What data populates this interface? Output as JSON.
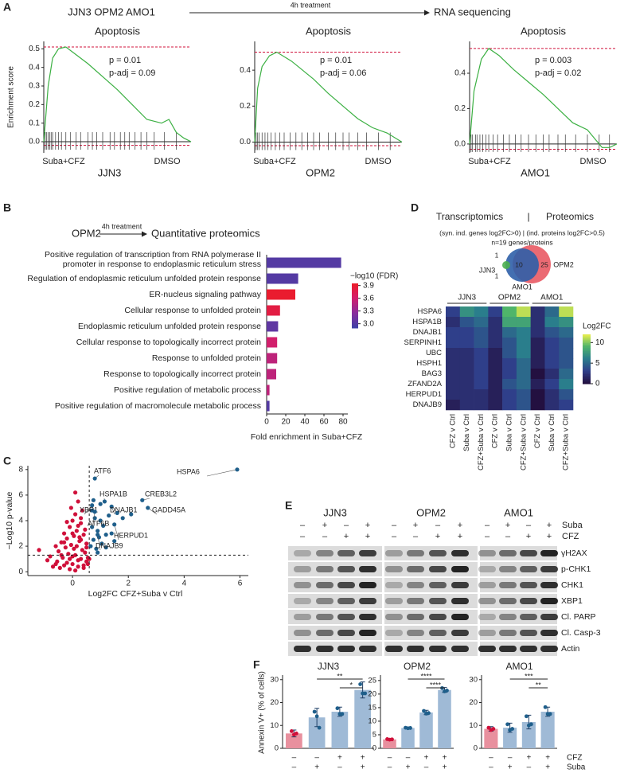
{
  "panels": [
    "A",
    "B",
    "C",
    "D",
    "E",
    "F"
  ],
  "gsea": {
    "header": {
      "cells": "JJN3 OPM2 AMO1",
      "treatment": "4h treatment",
      "assay": "RNA sequencing"
    },
    "y_label": "Enrichment score",
    "x_left": "Suba+CFZ",
    "x_right": "DMSO",
    "color": "#3cb043",
    "line_color": "#d0103a",
    "plots": [
      {
        "title": "Apoptosis",
        "cell_line": "JJN3",
        "p": "p = 0.01",
        "p_adj": "p-adj = 0.09",
        "ylim": [
          -0.06,
          0.54
        ],
        "yticks": [
          {
            "value": 0,
            "label": "0.0"
          },
          0.1,
          0.2,
          0.3,
          0.4,
          0.5
        ],
        "x": [
          0,
          0.03,
          0.06,
          0.1,
          0.15,
          0.2,
          0.3,
          0.4,
          0.5,
          0.6,
          0.7,
          0.8,
          0.85,
          0.9,
          0.95,
          1
        ],
        "es": [
          0,
          0.3,
          0.45,
          0.5,
          0.51,
          0.48,
          0.42,
          0.35,
          0.28,
          0.2,
          0.12,
          0.1,
          0.12,
          0.05,
          0.02,
          0
        ],
        "es_max": 0.51,
        "es_min": -0.02,
        "hits": [
          0.01,
          0.02,
          0.03,
          0.04,
          0.05,
          0.06,
          0.08,
          0.1,
          0.12,
          0.15,
          0.18,
          0.22,
          0.25,
          0.3,
          0.33,
          0.36,
          0.4,
          0.45,
          0.48,
          0.52,
          0.55,
          0.58,
          0.62,
          0.66,
          0.7,
          0.75,
          0.82,
          0.9
        ]
      },
      {
        "title": "Apoptosis",
        "cell_line": "OPM2",
        "p": "p = 0.01",
        "p_adj": "p-adj = 0.06",
        "ylim": [
          -0.06,
          0.56
        ],
        "yticks": [
          {
            "value": 0,
            "label": "0.0"
          },
          0.2,
          0.4
        ],
        "x": [
          0,
          0.02,
          0.05,
          0.1,
          0.15,
          0.25,
          0.4,
          0.5,
          0.6,
          0.7,
          0.8,
          0.9,
          1
        ],
        "es": [
          0,
          0.3,
          0.42,
          0.48,
          0.5,
          0.45,
          0.35,
          0.27,
          0.2,
          0.13,
          0.08,
          0.05,
          0
        ],
        "es_max": 0.5,
        "es_min": -0.02,
        "hits": [
          0.01,
          0.02,
          0.03,
          0.05,
          0.07,
          0.09,
          0.11,
          0.14,
          0.17,
          0.2,
          0.24,
          0.28,
          0.32,
          0.36,
          0.4,
          0.44,
          0.5,
          0.55,
          0.6,
          0.64,
          0.7,
          0.76,
          0.84,
          0.92
        ]
      },
      {
        "title": "Apoptosis",
        "cell_line": "AMO1",
        "p": "p = 0.003",
        "p_adj": "p-adj = 0.02",
        "ylim": [
          -0.05,
          0.58
        ],
        "yticks": [
          {
            "value": 0,
            "label": "0.0"
          },
          0.2,
          0.4
        ],
        "x": [
          0,
          0.03,
          0.08,
          0.13,
          0.2,
          0.3,
          0.4,
          0.5,
          0.6,
          0.7,
          0.8,
          0.85,
          0.9,
          0.95,
          1
        ],
        "es": [
          0,
          0.3,
          0.48,
          0.54,
          0.5,
          0.42,
          0.35,
          0.28,
          0.2,
          0.12,
          0.08,
          0.03,
          -0.02,
          -0.02,
          0
        ],
        "es_max": 0.54,
        "es_min": -0.03,
        "hits": [
          0.01,
          0.02,
          0.04,
          0.05,
          0.07,
          0.09,
          0.11,
          0.13,
          0.16,
          0.19,
          0.23,
          0.27,
          0.31,
          0.35,
          0.4,
          0.45,
          0.5,
          0.54,
          0.6,
          0.65,
          0.72,
          0.8,
          0.88,
          0.95
        ]
      }
    ]
  },
  "go": {
    "header": {
      "cells": "OPM2",
      "treatment": "4h treatment",
      "assay": "Quantitative proteomics"
    },
    "categories": [
      "Positive regulation of transcription from RNA polymerase II promoter in response to endoplasmic reticulum stress",
      "Regulation of endoplasmic reticulum unfolded protein response",
      "ER-nucleus signaling pathway",
      "Cellular response to unfolded protein",
      "Endoplasmic reticulum unfolded protein response",
      "Cellular response to topologically incorrect protein",
      "Response to unfolded protein",
      "Response to topologically incorrect protein",
      "Positive regulation of metabolic process",
      "Positive regulation of macromolecule metabolic process"
    ],
    "values": [
      78,
      33,
      30,
      14,
      12,
      11,
      11,
      10,
      3,
      3
    ],
    "fdr": [
      3.0,
      3.0,
      3.9,
      3.8,
      3.05,
      3.6,
      3.5,
      3.5,
      3.5,
      3.0
    ],
    "xlim": [
      0,
      85
    ],
    "xticks": [
      0,
      20,
      40,
      60,
      80
    ],
    "x_label": "Fold enrichment in Suba+CFZ",
    "legend_title": "−log10 (FDR)",
    "fdr_lim": [
      2.9,
      3.95
    ],
    "fdr_ticks": [
      {
        "value": 3,
        "label": "3.0"
      },
      3.3,
      3.6,
      3.9
    ],
    "colormap": [
      "#3f3fa6",
      "#8a2c9c",
      "#d21f6c",
      "#ee1c25"
    ]
  },
  "volcano": {
    "x_label": "Log2FC CFZ+Suba v Ctrl",
    "y_label": "−Log10 p-value",
    "xlim": [
      -1.6,
      6.3
    ],
    "ylim": [
      -0.3,
      8.3
    ],
    "xticks": [
      0,
      2,
      4,
      6
    ],
    "yticks": [
      0,
      2,
      4,
      6,
      8
    ],
    "thresholds": {
      "x": 0.6,
      "y": 1.3
    },
    "groups": [
      {
        "color": "#d0103a",
        "points": [
          [
            -1.2,
            1.7
          ],
          [
            -0.9,
            0.9
          ],
          [
            -0.8,
            1.2
          ],
          [
            -0.7,
            0.4
          ],
          [
            -0.6,
            2.0
          ],
          [
            -0.55,
            0.8
          ],
          [
            -0.5,
            1.6
          ],
          [
            -0.45,
            0.3
          ],
          [
            -0.4,
            2.3
          ],
          [
            -0.35,
            1.1
          ],
          [
            -0.3,
            0.5
          ],
          [
            -0.3,
            3.0
          ],
          [
            -0.25,
            1.9
          ],
          [
            -0.2,
            0.7
          ],
          [
            -0.2,
            2.6
          ],
          [
            -0.15,
            1.4
          ],
          [
            -0.1,
            0.2
          ],
          [
            -0.1,
            3.5
          ],
          [
            -0.05,
            2.1
          ],
          [
            0,
            0.6
          ],
          [
            0,
            4.0
          ],
          [
            0.05,
            2.8
          ],
          [
            0.1,
            1.3
          ],
          [
            0.1,
            4.5
          ],
          [
            0.15,
            3.2
          ],
          [
            0.2,
            0.9
          ],
          [
            0.2,
            5.5
          ],
          [
            0.25,
            2.4
          ],
          [
            0.3,
            1.0
          ],
          [
            0.3,
            3.8
          ],
          [
            0.35,
            1.7
          ],
          [
            0.4,
            0.5
          ],
          [
            0.4,
            2.9
          ],
          [
            0.45,
            1.5
          ],
          [
            0.5,
            0.8
          ],
          [
            0.5,
            2.2
          ],
          [
            0.55,
            1.1
          ],
          [
            0.1,
            6.2
          ],
          [
            -0.05,
            5.0
          ],
          [
            0.2,
            3.6
          ],
          [
            0.3,
            4.2
          ],
          [
            0,
            3.0
          ],
          [
            -0.1,
            1.0
          ],
          [
            0.15,
            2.0
          ],
          [
            0.25,
            2.7
          ],
          [
            0.05,
            1.8
          ],
          [
            -0.3,
            2.3
          ],
          [
            -0.6,
            0.6
          ],
          [
            0.4,
            0.3
          ],
          [
            0.5,
            1.9
          ],
          [
            0.35,
            4.8
          ],
          [
            0.45,
            3.3
          ],
          [
            -0.2,
            3.9
          ],
          [
            0.1,
            0.1
          ],
          [
            0.2,
            0.4
          ],
          [
            0.3,
            2.5
          ],
          [
            -0.4,
            1.3
          ],
          [
            0,
            1.2
          ],
          [
            0.55,
            0.6
          ],
          [
            0.6,
            1.0
          ]
        ]
      },
      {
        "color": "#1f5f8b",
        "points": [
          [
            0.65,
            2.0
          ],
          [
            0.7,
            3.5
          ],
          [
            0.75,
            2.5
          ],
          [
            0.8,
            4.2
          ],
          [
            0.85,
            1.8
          ],
          [
            0.9,
            3.2
          ],
          [
            0.95,
            2.7
          ],
          [
            1.0,
            4.0
          ],
          [
            1.05,
            2.2
          ],
          [
            1.1,
            3.6
          ],
          [
            1.2,
            2.9
          ],
          [
            1.3,
            4.4
          ],
          [
            1.4,
            3.0
          ],
          [
            1.6,
            4.6
          ],
          [
            1.8,
            4.2
          ],
          [
            2.1,
            4.5
          ],
          [
            1.0,
            5.3
          ],
          [
            0.7,
            4.8
          ],
          [
            0.9,
            1.5
          ],
          [
            1.2,
            1.9
          ],
          [
            0.75,
            5.6
          ],
          [
            1.5,
            2.4
          ]
        ]
      }
    ],
    "labeled": {
      "color": "#1f5f8b",
      "genes": [
        "HSPA6",
        "ATF6",
        "HSPA1B",
        "CREB3L2",
        "XBP1",
        "DNAJB1",
        "GADD45A",
        "ATF6B",
        "HERPUD1",
        "DNAJB9"
      ],
      "points": [
        [
          5.9,
          8.0
        ],
        [
          0.8,
          7.3
        ],
        [
          1.15,
          5.5
        ],
        [
          2.5,
          5.6
        ],
        [
          0.7,
          5.2
        ],
        [
          1.4,
          5.1
        ],
        [
          2.7,
          5.0
        ],
        [
          0.8,
          4.7
        ],
        [
          1.5,
          3.7
        ],
        [
          0.9,
          2.9
        ]
      ]
    }
  },
  "overlap": {
    "title_left": "Transcriptomics",
    "divider": "|",
    "title_right": "Proteomics",
    "subtitle": "(syn. ind. genes log2FC>0) | (ind. proteins log2FC>0.5)",
    "n": "n=19 genes/proteins",
    "sets": [
      "JJN3",
      "OPM2",
      "AMO1"
    ],
    "counts": [
      1,
      1,
      10,
      25
    ],
    "groups": [
      "JJN3",
      "OPM2",
      "AMO1"
    ],
    "conditions": [
      "CFZ v Ctrl",
      "Suba v Ctrl",
      "CFZ+Suba v Ctrl"
    ],
    "rows": [
      "HSPA6",
      "HSPA1B",
      "DNAJB1",
      "SERPINH1",
      "UBC",
      "HSPH1",
      "BAG3",
      "ZFAND2A",
      "HERPUD1",
      "DNAJB9"
    ],
    "values": [
      [
        3,
        7,
        6,
        3,
        9,
        11,
        2,
        5,
        11
      ],
      [
        2,
        4,
        5,
        2,
        8,
        8,
        2,
        6,
        7
      ],
      [
        3,
        3,
        4,
        2,
        5,
        6,
        2,
        4,
        5
      ],
      [
        3,
        3,
        4,
        2,
        4,
        6,
        1,
        3,
        4
      ],
      [
        2,
        2,
        3,
        1,
        4,
        6,
        1,
        3,
        4
      ],
      [
        2,
        2,
        3,
        1,
        3,
        5,
        1,
        3,
        4
      ],
      [
        2,
        2,
        3,
        1,
        3,
        5,
        0,
        2,
        5
      ],
      [
        2,
        2,
        3,
        1,
        4,
        5,
        1,
        3,
        6
      ],
      [
        2,
        2,
        2,
        1,
        3,
        4,
        0,
        2,
        4
      ],
      [
        1,
        2,
        2,
        1,
        3,
        4,
        0,
        2,
        3
      ]
    ],
    "clim": [
      0,
      12
    ],
    "cticks": [
      0,
      5,
      10
    ],
    "colorbar_label": "Log2FC",
    "colormap": [
      "#231040",
      "#2f3f8a",
      "#2a7e8c",
      "#4fb56a",
      "#f4f24a"
    ]
  },
  "western": {
    "cell_lines": [
      "JJN3",
      "OPM2",
      "AMO1"
    ],
    "treatment_rows": [
      {
        "name": "Suba",
        "signs": [
          "–",
          "+",
          "–",
          "+"
        ]
      },
      {
        "name": "CFZ",
        "signs": [
          "–",
          "–",
          "+",
          "+"
        ]
      }
    ],
    "proteins": [
      "γH2AX",
      "p-CHK1",
      "CHK1",
      "XBP1",
      "Cl. PARP",
      "Cl. Casp-3",
      "Actin"
    ]
  },
  "annexin": {
    "y_label": "Annexin V+ (% of cells)",
    "colors": [
      "#e8909e",
      "#9fbad6",
      "#9fbad6",
      "#9fbad6"
    ],
    "point_colors": [
      "#d0103a",
      "#1f5f8b",
      "#1f5f8b",
      "#1f5f8b"
    ],
    "treatment_rows": [
      {
        "name": "CFZ",
        "signs": [
          "–",
          "–",
          "+",
          "+"
        ]
      },
      {
        "name": "Suba",
        "signs": [
          "–",
          "+",
          "–",
          "+"
        ]
      }
    ],
    "plots": [
      {
        "title": "JJN3",
        "ylim": [
          0,
          32
        ],
        "yticks": [
          0,
          10,
          20,
          30
        ],
        "means": [
          6.5,
          13.5,
          16,
          25.5
        ],
        "errors": [
          1.5,
          4,
          2,
          3.5
        ],
        "points": [
          [
            7.5,
            6,
            6.5
          ],
          [
            16,
            14,
            9
          ],
          [
            17.5,
            15,
            15
          ],
          [
            28,
            24,
            24
          ]
        ],
        "significance": [
          "**",
          "*"
        ]
      },
      {
        "title": "OPM2",
        "ylim": [
          0,
          27
        ],
        "yticks": [
          0,
          5,
          10,
          15,
          20,
          25
        ],
        "means": [
          3.3,
          7.5,
          13.2,
          21.5
        ],
        "errors": [
          0.3,
          0.3,
          0.8,
          0.9
        ],
        "points": [
          [
            3.4,
            3.2,
            3.3
          ],
          [
            7.6,
            7.4,
            7.5
          ],
          [
            13.8,
            12.8,
            13.0
          ],
          [
            22.2,
            21.0,
            21.3
          ]
        ],
        "significance": [
          "****",
          "****"
        ]
      },
      {
        "title": "AMO1",
        "ylim": [
          0,
          32
        ],
        "yticks": [
          0,
          10,
          20,
          30
        ],
        "means": [
          8.5,
          9,
          11.5,
          16
        ],
        "errors": [
          1,
          2,
          3,
          2
        ],
        "points": [
          [
            9,
            8,
            8.5
          ],
          [
            10.5,
            8,
            8.5
          ],
          [
            14,
            10,
            10.5
          ],
          [
            18,
            15,
            15
          ]
        ],
        "significance": [
          "***",
          "**"
        ]
      }
    ]
  }
}
